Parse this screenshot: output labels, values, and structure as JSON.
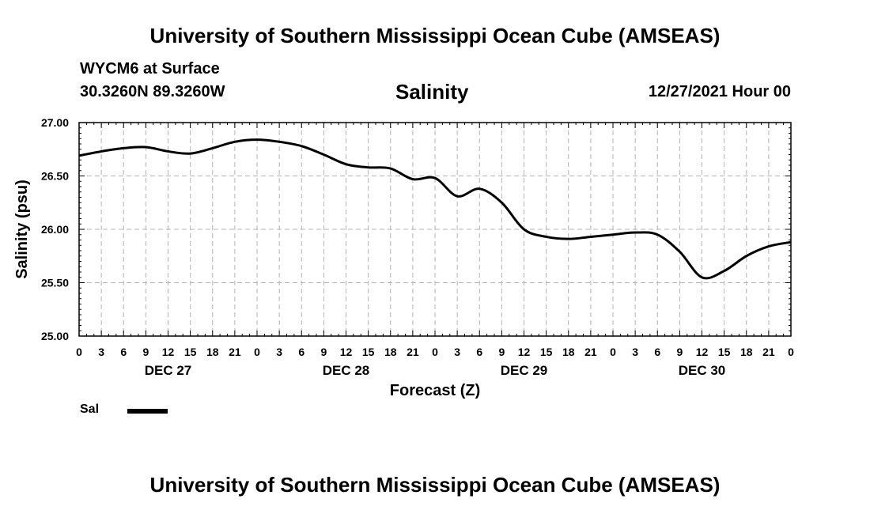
{
  "header": {
    "title": "University of Southern Mississippi Ocean Cube (AMSEAS)",
    "station": "WYCM6 at Surface",
    "coordinates": "30.3260N  89.3260W",
    "datetime": "12/27/2021 Hour 00"
  },
  "footer": {
    "title": "University of Southern Mississippi Ocean Cube (AMSEAS)"
  },
  "legend": {
    "label": "Sal"
  },
  "chart_data": {
    "type": "line",
    "title": "Salinity",
    "xlabel": "Forecast (Z)",
    "ylabel": "Salinity (psu)",
    "xlim": [
      0,
      96
    ],
    "ylim": [
      25.0,
      27.0
    ],
    "grid": true,
    "y_ticks": [
      "27.00",
      "26.50",
      "26.00",
      "25.50",
      "25.00"
    ],
    "x_tick_labels": [
      "0",
      "3",
      "6",
      "9",
      "12",
      "15",
      "18",
      "21",
      "0",
      "3",
      "6",
      "9",
      "12",
      "15",
      "18",
      "21",
      "0",
      "3",
      "6",
      "9",
      "12",
      "15",
      "18",
      "21",
      "0",
      "3",
      "6",
      "9",
      "12",
      "15",
      "18",
      "21",
      "0"
    ],
    "day_labels": [
      "DEC 27",
      "DEC 28",
      "DEC 29",
      "DEC 30"
    ],
    "series": [
      {
        "name": "Sal",
        "color": "#000000",
        "x": [
          0,
          3,
          6,
          9,
          12,
          15,
          18,
          21,
          24,
          27,
          30,
          33,
          36,
          39,
          42,
          45,
          48,
          51,
          54,
          57,
          60,
          63,
          66,
          69,
          72,
          75,
          78,
          81,
          84,
          87,
          90,
          93,
          96
        ],
        "values": [
          26.69,
          26.73,
          26.76,
          26.77,
          26.73,
          26.71,
          26.76,
          26.82,
          26.84,
          26.82,
          26.78,
          26.7,
          26.61,
          26.58,
          26.57,
          26.47,
          26.48,
          26.31,
          26.38,
          26.25,
          26.0,
          25.93,
          25.91,
          25.93,
          25.95,
          25.97,
          25.95,
          25.79,
          25.55,
          25.61,
          25.75,
          25.84,
          25.88
        ]
      }
    ]
  }
}
